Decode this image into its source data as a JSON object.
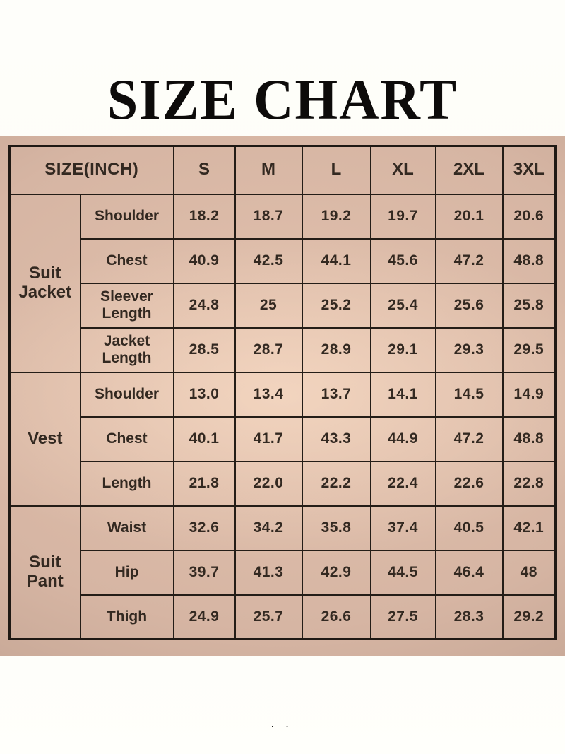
{
  "chart_data": {
    "type": "table",
    "title": "SIZE CHART",
    "unit_header": "SIZE(INCH)",
    "columns": [
      "S",
      "M",
      "L",
      "XL",
      "2XL",
      "3XL"
    ],
    "groups": [
      {
        "name": "Suit Jacket",
        "rows": [
          {
            "label": "Shoulder",
            "values": [
              "18.2",
              "18.7",
              "19.2",
              "19.7",
              "20.1",
              "20.6"
            ]
          },
          {
            "label": "Chest",
            "values": [
              "40.9",
              "42.5",
              "44.1",
              "45.6",
              "47.2",
              "48.8"
            ]
          },
          {
            "label": "Sleever Length",
            "values": [
              "24.8",
              "25",
              "25.2",
              "25.4",
              "25.6",
              "25.8"
            ]
          },
          {
            "label": "Jacket Length",
            "values": [
              "28.5",
              "28.7",
              "28.9",
              "29.1",
              "29.3",
              "29.5"
            ]
          }
        ]
      },
      {
        "name": "Vest",
        "rows": [
          {
            "label": "Shoulder",
            "values": [
              "13.0",
              "13.4",
              "13.7",
              "14.1",
              "14.5",
              "14.9"
            ]
          },
          {
            "label": "Chest",
            "values": [
              "40.1",
              "41.7",
              "43.3",
              "44.9",
              "47.2",
              "48.8"
            ]
          },
          {
            "label": "Length",
            "values": [
              "21.8",
              "22.0",
              "22.2",
              "22.4",
              "22.6",
              "22.8"
            ]
          }
        ]
      },
      {
        "name": "Suit Pant",
        "rows": [
          {
            "label": "Waist",
            "values": [
              "32.6",
              "34.2",
              "35.8",
              "37.4",
              "40.5",
              "42.1"
            ]
          },
          {
            "label": "Hip",
            "values": [
              "39.7",
              "41.3",
              "42.9",
              "44.5",
              "46.4",
              "48"
            ]
          },
          {
            "label": "Thigh",
            "values": [
              "24.9",
              "25.7",
              "26.6",
              "27.5",
              "28.3",
              "29.2"
            ]
          }
        ]
      }
    ],
    "layout": {
      "unit_header_colspan": 2,
      "grid": "on"
    }
  },
  "footer_marks": "· ·",
  "colors": {
    "page_background": "#fdfdf7",
    "band_tan": "#d6b5a3",
    "band_tan_light": "#e8c9b5",
    "band_tan_dark": "#bb9c8c",
    "table_border": "#241d17",
    "text": "#332921",
    "title_text": "#0d0b0a"
  }
}
